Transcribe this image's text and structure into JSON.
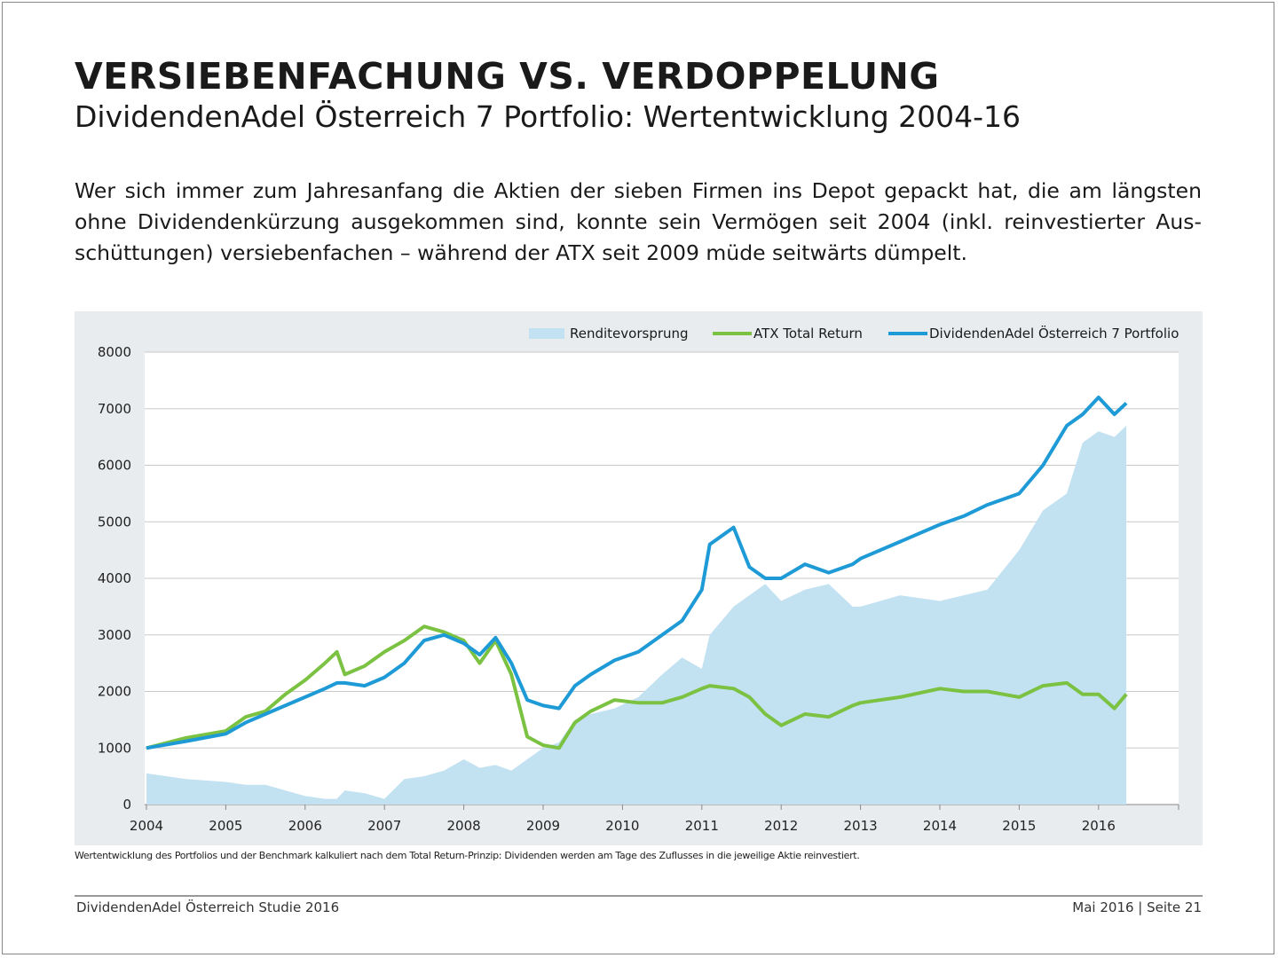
{
  "header": {
    "title": "VERSIEBENFACHUNG VS. VERDOPPELUNG",
    "subtitle": "DividendenAdel Österreich 7 Portfolio: Wertentwicklung 2004-16"
  },
  "intro": "Wer sich immer zum Jahresanfang die Aktien der sieben Firmen ins Depot gepackt hat, die am längsten ohne Dividendenkürzung ausgekommen sind, konnte sein Vermögen seit 2004 (inkl. reinvestierter Aus­schüttungen) versiebenfachen – während der ATX seit 2009 müde seitwärts dümpelt.",
  "footnote": "Wertentwicklung des Portfolios und der Benchmark kalkuliert nach dem Total Return-Prinzip: Dividenden werden am Tage des Zuflusses in die jeweilige Aktie reinvestiert.",
  "footer": {
    "left": "DividendenAdel Österreich Studie 2016",
    "right": "Mai 2016 | Seite 21"
  },
  "colors": {
    "portfolio": "#1e9ad6",
    "atx": "#7cc242",
    "area": "#c2e1f1",
    "panel": "#e9ecee"
  },
  "chart_data": {
    "type": "line",
    "title": "",
    "xlabel": "",
    "ylabel": "",
    "xlim": [
      2004,
      2017
    ],
    "ylim": [
      0,
      8000
    ],
    "xticks": [
      "2004",
      "2005",
      "2006",
      "2007",
      "2008",
      "2009",
      "2010",
      "2011",
      "2012",
      "2013",
      "2014",
      "2015",
      "2016"
    ],
    "yticks": [
      "0",
      "1000",
      "2000",
      "3000",
      "4000",
      "5000",
      "6000",
      "7000",
      "8000"
    ],
    "grid": true,
    "legend_position": "top-right",
    "x": [
      2004.0,
      2004.5,
      2005.0,
      2005.25,
      2005.5,
      2005.75,
      2006.0,
      2006.25,
      2006.4,
      2006.5,
      2006.75,
      2007.0,
      2007.25,
      2007.5,
      2007.75,
      2008.0,
      2008.2,
      2008.4,
      2008.6,
      2008.8,
      2009.0,
      2009.2,
      2009.4,
      2009.6,
      2009.9,
      2010.2,
      2010.5,
      2010.75,
      2011.0,
      2011.1,
      2011.4,
      2011.6,
      2011.8,
      2012.0,
      2012.3,
      2012.6,
      2012.9,
      2013.0,
      2013.5,
      2014.0,
      2014.3,
      2014.6,
      2015.0,
      2015.3,
      2015.6,
      2015.8,
      2016.0,
      2016.2,
      2016.35
    ],
    "series": [
      {
        "name": "Renditevorsprung",
        "kind": "area",
        "values": [
          550,
          450,
          400,
          350,
          350,
          250,
          150,
          100,
          100,
          250,
          200,
          100,
          450,
          500,
          600,
          800,
          650,
          700,
          600,
          800,
          1000,
          1100,
          1500,
          1600,
          1700,
          1900,
          2300,
          2600,
          2400,
          3000,
          3500,
          3700,
          3900,
          3600,
          3800,
          3900,
          3500,
          3500,
          3700,
          3600,
          3700,
          3800,
          4500,
          5200,
          5500,
          6400,
          6600,
          6500,
          6700
        ]
      },
      {
        "name": "ATX Total Return",
        "kind": "line",
        "values": [
          1000,
          1180,
          1300,
          1550,
          1650,
          1950,
          2200,
          2500,
          2700,
          2300,
          2450,
          2700,
          2900,
          3150,
          3050,
          2900,
          2500,
          2900,
          2300,
          1200,
          1050,
          1000,
          1450,
          1650,
          1850,
          1800,
          1800,
          1900,
          2050,
          2100,
          2050,
          1900,
          1600,
          1400,
          1600,
          1550,
          1750,
          1800,
          1900,
          2050,
          2000,
          2000,
          1900,
          2100,
          2150,
          1950,
          1950,
          1700,
          1950
        ]
      },
      {
        "name": "DividendenAdel Österreich 7 Portfolio",
        "kind": "line",
        "values": [
          1000,
          1120,
          1250,
          1450,
          1600,
          1750,
          1900,
          2050,
          2150,
          2150,
          2100,
          2250,
          2500,
          2900,
          3000,
          2850,
          2650,
          2950,
          2500,
          1850,
          1750,
          1700,
          2100,
          2300,
          2550,
          2700,
          3000,
          3250,
          3800,
          4600,
          4900,
          4200,
          4000,
          4000,
          4250,
          4100,
          4250,
          4350,
          4650,
          4950,
          5100,
          5300,
          5500,
          6000,
          6700,
          6900,
          7200,
          6900,
          7100
        ]
      }
    ]
  }
}
